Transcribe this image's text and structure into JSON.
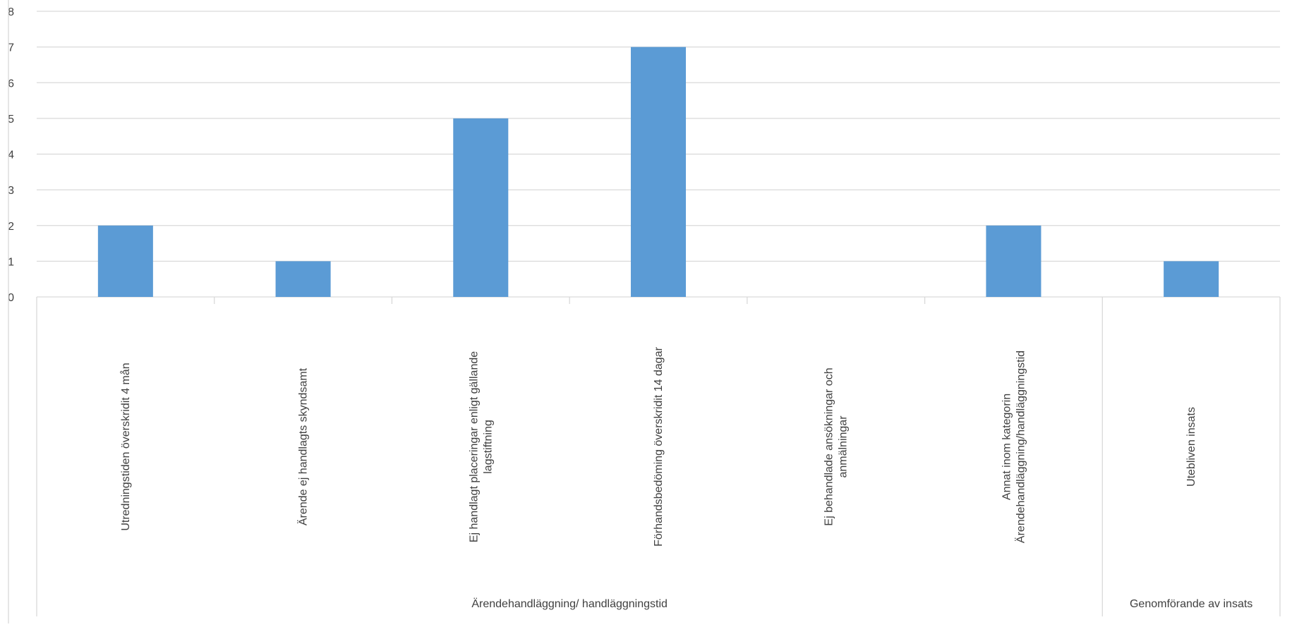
{
  "chart_data": {
    "type": "bar",
    "title": "",
    "xlabel": "",
    "ylabel": "",
    "ylim": [
      0,
      8
    ],
    "yticks": [
      "0",
      "1",
      "2",
      "3",
      "4",
      "5",
      "6",
      "7",
      "8"
    ],
    "grid": true,
    "bar_color": "#5B9BD5",
    "categories": [
      {
        "label": "Utredningstiden överskridit 4 mån",
        "lines": [
          "Utredningstiden överskridit 4 mån"
        ],
        "group": 0
      },
      {
        "label": "Ärende ej handlagts skyndsamt",
        "lines": [
          "Ärende ej handlagts skyndsamt"
        ],
        "group": 0
      },
      {
        "label": "Ej handlagt placeringar enligt gällande lagstiftning",
        "lines": [
          "Ej handlagt placeringar enligt gällande",
          "lagstiftning"
        ],
        "group": 0
      },
      {
        "label": "Förhandsbedöming överskridit 14 dagar",
        "lines": [
          "Förhandsbedöming överskridit 14 dagar"
        ],
        "group": 0
      },
      {
        "label": "Ej behandlade ansökningar och anmälningar",
        "lines": [
          "Ej behandlade ansökningar och",
          "anmälningar"
        ],
        "group": 0
      },
      {
        "label": "Annat inom kategorin Ärendehandläggning/handläggningstid",
        "lines": [
          "Annat inom kategorin",
          "Ärendehandläggning/handläggningstid"
        ],
        "group": 0
      },
      {
        "label": "Utebliven insats",
        "lines": [
          "Utebliven insats"
        ],
        "group": 1
      }
    ],
    "values": [
      2,
      1,
      5,
      7,
      0,
      2,
      1
    ],
    "groups": [
      "Ärendehandläggning/ handläggningstid",
      "Genomförande av insats"
    ]
  }
}
